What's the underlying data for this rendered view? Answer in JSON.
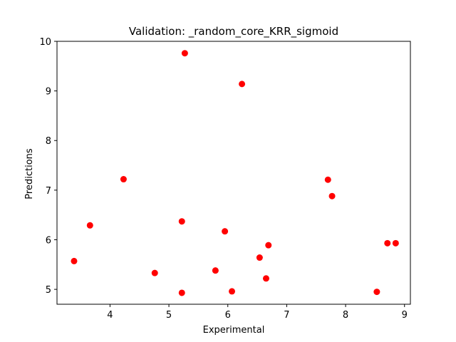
{
  "chart_data": {
    "type": "scatter",
    "title": "Validation: _random_core_KRR_sigmoid",
    "xlabel": "Experimental",
    "ylabel": "Predictions",
    "xlim": [
      3.1,
      9.1
    ],
    "ylim": [
      4.7,
      10.0
    ],
    "xticks": [
      4,
      5,
      6,
      7,
      8,
      9
    ],
    "yticks": [
      5,
      6,
      7,
      8,
      9,
      10
    ],
    "grid": false,
    "marker_color": "#ff0000",
    "points": [
      {
        "x": 3.39,
        "y": 5.57
      },
      {
        "x": 3.66,
        "y": 6.29
      },
      {
        "x": 4.23,
        "y": 7.22
      },
      {
        "x": 4.76,
        "y": 5.33
      },
      {
        "x": 5.22,
        "y": 6.37
      },
      {
        "x": 5.22,
        "y": 4.93
      },
      {
        "x": 5.27,
        "y": 9.76
      },
      {
        "x": 5.79,
        "y": 5.38
      },
      {
        "x": 5.95,
        "y": 6.17
      },
      {
        "x": 6.07,
        "y": 4.96
      },
      {
        "x": 6.24,
        "y": 9.14
      },
      {
        "x": 6.54,
        "y": 5.64
      },
      {
        "x": 6.65,
        "y": 5.22
      },
      {
        "x": 6.69,
        "y": 5.89
      },
      {
        "x": 7.7,
        "y": 7.21
      },
      {
        "x": 7.77,
        "y": 6.88
      },
      {
        "x": 8.53,
        "y": 4.95
      },
      {
        "x": 8.71,
        "y": 5.93
      },
      {
        "x": 8.85,
        "y": 5.93
      }
    ]
  }
}
